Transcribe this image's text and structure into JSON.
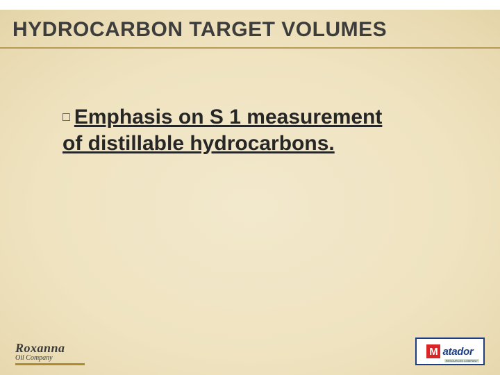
{
  "colors": {
    "background_center": "#f2e8cc",
    "background_edge": "#d9c795",
    "title_text": "#3d3d3c",
    "title_underline": "#b89a58",
    "body_text": "#262626",
    "top_bar": "#ffffff",
    "logo_left_text": "#3a3a3a",
    "logo_left_bar": "#b08a2e",
    "logo_right_border": "#1d3d82",
    "logo_right_m_bg": "#d52727",
    "logo_right_text": "#1d3d82"
  },
  "typography": {
    "title_fontsize": 30,
    "body_fontsize": 30,
    "title_weight": "bold",
    "body_weight": "bold"
  },
  "title": "HYDROCARBON TARGET VOLUMES",
  "bullet_glyph": "□",
  "body_line1": "Emphasis on S 1 measurement",
  "body_line2": "of distillable hydrocarbons.",
  "logo_left": {
    "name": "Roxanna",
    "tagline": "Oil Company"
  },
  "logo_right": {
    "m": "M",
    "word": "atador",
    "sub": "RESOURCES COMPANY"
  }
}
